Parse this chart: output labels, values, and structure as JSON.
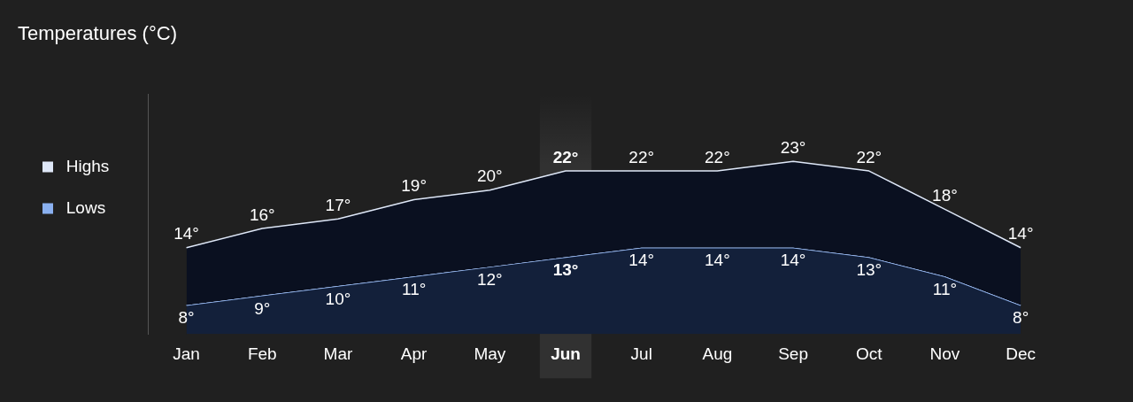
{
  "chart_data": {
    "type": "area",
    "title": "Temperatures (°C)",
    "categories": [
      "Jan",
      "Feb",
      "Mar",
      "Apr",
      "May",
      "Jun",
      "Jul",
      "Aug",
      "Sep",
      "Oct",
      "Nov",
      "Dec"
    ],
    "series": [
      {
        "name": "Highs",
        "color": "#dfe8f8",
        "values": [
          14,
          16,
          17,
          19,
          20,
          22,
          22,
          22,
          23,
          22,
          18,
          14
        ],
        "value_labels": [
          "14°",
          "16°",
          "17°",
          "19°",
          "20°",
          "22°",
          "22°",
          "22°",
          "23°",
          "22°",
          "18°",
          "14°"
        ]
      },
      {
        "name": "Lows",
        "color": "#8ab0f0",
        "values": [
          8,
          9,
          10,
          11,
          12,
          13,
          14,
          14,
          14,
          13,
          11,
          8
        ],
        "value_labels": [
          "8°",
          "9°",
          "10°",
          "11°",
          "12°",
          "13°",
          "14°",
          "14°",
          "14°",
          "13°",
          "11°",
          "8°"
        ]
      }
    ],
    "tick_labels": "x",
    "legend": "left",
    "grid": false,
    "marker": "none",
    "bands": [
      {
        "axis": "x",
        "from": "Jun",
        "to": "Jun"
      }
    ]
  }
}
